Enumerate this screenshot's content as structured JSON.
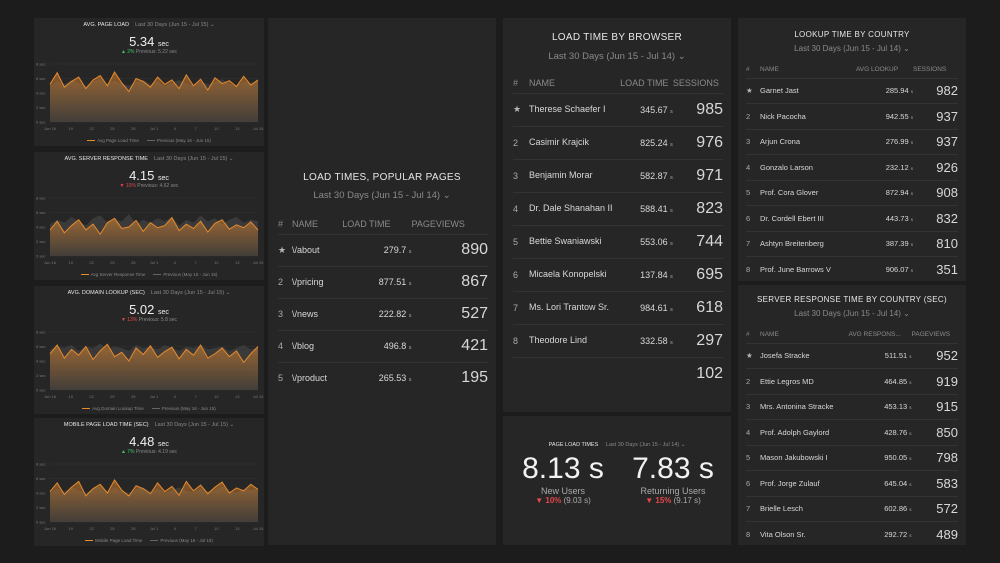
{
  "colors": {
    "accent": "#e58a2e",
    "negative": "#e2474b",
    "positive": "#43c46f"
  },
  "metric_cards": [
    {
      "title": "AVG. PAGE LOAD",
      "range": "Last 30 Days (Jun 15 - Jul 15)",
      "value": "5.34",
      "unit": "sec",
      "delta_arrow": "▲",
      "delta": "2%",
      "previous": "Previous: 5.22 sec",
      "legend_current": "Avg Page Load Time",
      "legend_previous": "Previous (May 16 - Jun 15)",
      "direction": "up",
      "y_ticks": [
        "8 sec",
        "6 sec",
        "4 sec",
        "2 sec",
        "0 sec"
      ],
      "x_ticks": [
        "Jun 16",
        "19",
        "22",
        "25",
        "28",
        "Jul 1",
        "4",
        "7",
        "10",
        "13",
        "Jul 15"
      ],
      "series": [
        5.2,
        6.8,
        4.8,
        5.6,
        6.2,
        4.6,
        5.8,
        6.4,
        5.0,
        6.9,
        5.4,
        4.2,
        6.0,
        5.6,
        4.8,
        6.2,
        5.2,
        5.8,
        4.6,
        6.5,
        5.0,
        5.9,
        4.4,
        6.1,
        5.3,
        5.7,
        4.9,
        6.3,
        5.1,
        5.8
      ],
      "previous_series": [
        5.0,
        5.6,
        5.2,
        5.8,
        5.4,
        5.0,
        5.6,
        5.9,
        5.2,
        5.7,
        5.3,
        5.0,
        5.5,
        5.8,
        5.2,
        5.6,
        5.0,
        5.4,
        5.8,
        5.3,
        5.1,
        5.6,
        5.2,
        5.5,
        5.9,
        5.3,
        5.0,
        5.6,
        5.4,
        5.7
      ]
    },
    {
      "title": "AVG. SERVER RESPONSE TIME",
      "range": "Last 30 Days (Jun 15 - Jul 15)",
      "value": "4.15",
      "unit": "sec",
      "delta_arrow": "▼",
      "delta": "10%",
      "previous": "Previous: 4.62 sec",
      "legend_current": "Avg Server Response Time",
      "legend_previous": "Previous (May 16 - Jun 15)",
      "direction": "down",
      "y_ticks": [
        "8 sec",
        "6 sec",
        "4 sec",
        "2 sec",
        "0 sec"
      ],
      "x_ticks": [
        "Jun 16",
        "19",
        "22",
        "25",
        "28",
        "Jul 1",
        "4",
        "7",
        "10",
        "13",
        "Jul 15"
      ],
      "series": [
        3.6,
        4.8,
        3.2,
        4.2,
        5.0,
        3.6,
        4.4,
        3.0,
        4.6,
        5.2,
        3.8,
        4.0,
        4.9,
        3.4,
        4.6,
        3.9,
        4.2,
        5.3,
        3.5,
        4.4,
        3.8,
        4.8,
        3.3,
        4.5,
        5.0,
        3.7,
        4.3,
        3.9,
        4.7,
        3.6
      ],
      "previous_series": [
        4.4,
        5.0,
        4.6,
        5.4,
        4.8,
        4.2,
        5.2,
        5.6,
        4.6,
        5.0,
        4.8,
        5.8,
        4.4,
        5.0,
        4.6,
        5.2,
        4.8,
        5.4,
        4.2,
        5.0,
        4.6,
        5.6,
        4.8,
        5.2,
        4.4,
        5.0,
        5.4,
        4.6,
        5.0,
        4.8
      ]
    },
    {
      "title": "AVG. DOMAIN LOOKUP (SEC)",
      "range": "Last 30 Days (Jun 15 - Jul 15)",
      "value": "5.02",
      "unit": "sec",
      "delta_arrow": "▼",
      "delta": "13%",
      "previous": "Previous: 5.8 sec",
      "legend_current": "Avg Domain Lookup Time",
      "legend_previous": "Previous (May 16 - Jun 15)",
      "direction": "down",
      "y_ticks": [
        "8 sec",
        "6 sec",
        "4 sec",
        "2 sec",
        "0 sec"
      ],
      "x_ticks": [
        "Jun 16",
        "19",
        "22",
        "25",
        "28",
        "Jul 1",
        "4",
        "7",
        "10",
        "13",
        "Jul 15"
      ],
      "series": [
        5.0,
        6.2,
        4.4,
        5.6,
        4.8,
        6.0,
        4.2,
        5.4,
        6.3,
        4.6,
        5.2,
        4.0,
        5.8,
        4.9,
        6.1,
        4.5,
        5.3,
        5.9,
        4.3,
        5.6,
        4.8,
        6.2,
        4.4,
        5.0,
        5.8,
        4.6,
        5.4,
        3.8,
        5.0,
        6.0
      ],
      "previous_series": [
        5.6,
        6.0,
        5.8,
        6.2,
        5.4,
        6.0,
        5.8,
        6.4,
        5.6,
        6.0,
        5.8,
        5.4,
        6.2,
        5.8,
        6.0,
        5.6,
        6.2,
        5.8,
        5.4,
        6.0,
        5.8,
        6.2,
        5.6,
        5.8,
        6.0,
        5.4,
        5.8,
        6.2,
        5.6,
        5.9
      ]
    },
    {
      "title": "MOBILE PAGE LOAD TIME (SEC)",
      "range": "Last 30 Days (Jun 15 - Jul 15)",
      "value": "4.48",
      "unit": "sec",
      "delta_arrow": "▲",
      "delta": "7%",
      "previous": "Previous: 4.19 sec",
      "legend_current": "Mobile Page Load Time",
      "legend_previous": "Previous (May 16 - Jul 15)",
      "direction": "up",
      "y_ticks": [
        "8 sec",
        "6 sec",
        "4 sec",
        "2 sec",
        "0 sec"
      ],
      "x_ticks": [
        "Jun 16",
        "19",
        "22",
        "25",
        "28",
        "Jul 1",
        "4",
        "7",
        "10",
        "13",
        "Jul 15"
      ],
      "series": [
        4.2,
        5.4,
        3.8,
        4.8,
        5.6,
        3.6,
        4.6,
        5.2,
        4.0,
        5.8,
        4.4,
        3.6,
        5.0,
        4.6,
        3.9,
        5.4,
        4.2,
        4.9,
        3.7,
        5.6,
        4.3,
        5.1,
        3.9,
        4.8,
        5.5,
        4.0,
        4.7,
        4.3,
        5.2,
        4.5
      ],
      "previous_series": [
        4.0,
        4.6,
        4.2,
        4.8,
        4.4,
        4.0,
        4.6,
        4.9,
        4.2,
        4.7,
        4.3,
        4.0,
        4.5,
        4.8,
        4.2,
        4.6,
        4.0,
        4.4,
        4.8,
        4.3,
        4.1,
        4.6,
        4.2,
        4.5,
        4.9,
        4.3,
        4.0,
        4.6,
        4.4,
        4.7
      ]
    }
  ],
  "popular_pages": {
    "title": "LOAD TIMES, POPULAR PAGES",
    "range": "Last 30 Days (Jun 15 - Jul 14)",
    "headers": [
      "#",
      "NAME",
      "LOAD TIME",
      "PAGEVIEWS"
    ],
    "rows": [
      {
        "rank": "",
        "name": "\\/about",
        "time": "279.7",
        "unit": "s",
        "count": "890"
      },
      {
        "rank": "2",
        "name": "\\/pricing",
        "time": "877.51",
        "unit": "s",
        "count": "867"
      },
      {
        "rank": "3",
        "name": "\\/news",
        "time": "222.82",
        "unit": "s",
        "count": "527"
      },
      {
        "rank": "4",
        "name": "\\/blog",
        "time": "496.8",
        "unit": "s",
        "count": "421"
      },
      {
        "rank": "5",
        "name": "\\/product",
        "time": "265.53",
        "unit": "s",
        "count": "195"
      }
    ]
  },
  "browser": {
    "title": "LOAD TIME BY BROWSER",
    "range": "Last 30 Days (Jun 15 - Jul 14)",
    "headers": [
      "#",
      "NAME",
      "LOAD TIME",
      "SESSIONS"
    ],
    "rows": [
      {
        "rank": "",
        "name": "Therese Schaefer I",
        "time": "345.67",
        "unit": "s",
        "count": "985"
      },
      {
        "rank": "2",
        "name": "Casimir Krajcik",
        "time": "825.24",
        "unit": "s",
        "count": "976"
      },
      {
        "rank": "3",
        "name": "Benjamin Morar",
        "time": "582.87",
        "unit": "s",
        "count": "971"
      },
      {
        "rank": "4",
        "name": "Dr. Dale Shanahan II",
        "time": "588.41",
        "unit": "s",
        "count": "823"
      },
      {
        "rank": "5",
        "name": "Bettie Swaniawski",
        "time": "553.06",
        "unit": "s",
        "count": "744"
      },
      {
        "rank": "6",
        "name": "Micaela Konopelski",
        "time": "137.84",
        "unit": "s",
        "count": "695"
      },
      {
        "rank": "7",
        "name": "Ms. Lori Trantow Sr.",
        "time": "984.61",
        "unit": "s",
        "count": "618"
      },
      {
        "rank": "8",
        "name": "Theodore Lind",
        "time": "332.58",
        "unit": "s",
        "count": "297"
      },
      {
        "rank": "",
        "name": "",
        "time": "",
        "unit": "",
        "count": "102"
      }
    ]
  },
  "page_load_kpi": {
    "title": "PAGE LOAD TIMES",
    "range": "Last 30 Days (Jun 15 - Jul 14)",
    "items": [
      {
        "value": "8.13 s",
        "label": "New Users",
        "arrow": "▼",
        "change": "10%",
        "previous": "(9.03 s)"
      },
      {
        "value": "7.83 s",
        "label": "Returning Users",
        "arrow": "▼",
        "change": "15%",
        "previous": "(9.17 s)"
      }
    ]
  },
  "country_lookup": {
    "title": "LOOKUP TIME BY COUNTRY",
    "range": "Last 30 Days (Jun 15 - Jul 14)",
    "headers": [
      "#",
      "NAME",
      "AVG LOOKUP",
      "SESSIONS"
    ],
    "rows": [
      {
        "rank": "",
        "name": "Garnet Jast",
        "time": "285.94",
        "unit": "s",
        "count": "982"
      },
      {
        "rank": "2",
        "name": "Nick Pacocha",
        "time": "942.55",
        "unit": "s",
        "count": "937"
      },
      {
        "rank": "3",
        "name": "Arjun Crona",
        "time": "276.99",
        "unit": "s",
        "count": "937"
      },
      {
        "rank": "4",
        "name": "Gonzalo Larson",
        "time": "232.12",
        "unit": "s",
        "count": "926"
      },
      {
        "rank": "5",
        "name": "Prof. Cora Glover",
        "time": "872.94",
        "unit": "s",
        "count": "908"
      },
      {
        "rank": "6",
        "name": "Dr. Cordell Ebert III",
        "time": "443.73",
        "unit": "s",
        "count": "832"
      },
      {
        "rank": "7",
        "name": "Ashtyn Breitenberg",
        "time": "387.39",
        "unit": "s",
        "count": "810"
      },
      {
        "rank": "8",
        "name": "Prof. June Barrows V",
        "time": "906.07",
        "unit": "s",
        "count": "351"
      }
    ]
  },
  "country_response": {
    "title": "SERVER RESPONSE TIME BY COUNTRY (SEC)",
    "range": "Last 30 Days (Jun 15 - Jul 14)",
    "headers": [
      "#",
      "NAME",
      "AVG RESPONS...",
      "PAGEVIEWS"
    ],
    "rows": [
      {
        "rank": "",
        "name": "Josefa Stracke",
        "time": "511.51",
        "unit": "s",
        "count": "952"
      },
      {
        "rank": "2",
        "name": "Ettie Legros MD",
        "time": "464.85",
        "unit": "s",
        "count": "919"
      },
      {
        "rank": "3",
        "name": "Mrs. Antonina Stracke",
        "time": "453.13",
        "unit": "s",
        "count": "915"
      },
      {
        "rank": "4",
        "name": "Prof. Adolph Gaylord",
        "time": "428.76",
        "unit": "s",
        "count": "850"
      },
      {
        "rank": "5",
        "name": "Mason Jakubowski I",
        "time": "950.05",
        "unit": "s",
        "count": "798"
      },
      {
        "rank": "6",
        "name": "Prof. Jorge Zulauf",
        "time": "645.04",
        "unit": "s",
        "count": "583"
      },
      {
        "rank": "7",
        "name": "Brielle Lesch",
        "time": "602.86",
        "unit": "s",
        "count": "572"
      },
      {
        "rank": "8",
        "name": "Vita Olson Sr.",
        "time": "292.72",
        "unit": "s",
        "count": "489"
      }
    ]
  }
}
